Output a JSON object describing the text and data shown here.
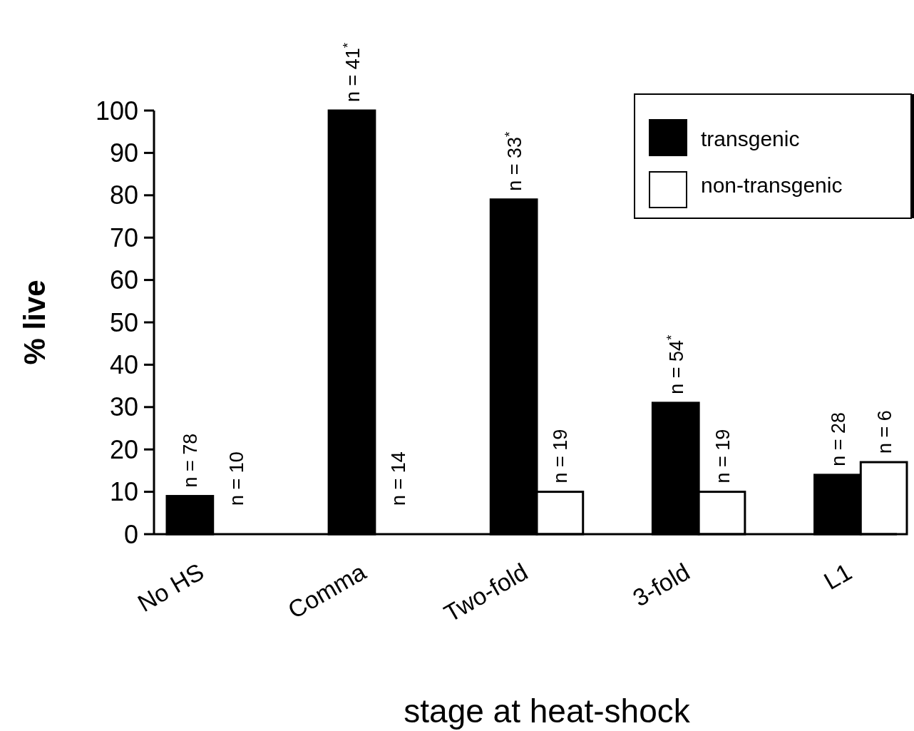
{
  "chart_data": {
    "type": "bar",
    "xlabel": "stage at heat-shock",
    "ylabel": "% live",
    "categories": [
      "No HS",
      "Comma",
      "Two-fold",
      "3-fold",
      "L1"
    ],
    "series": [
      {
        "name": "transgenic",
        "color": "#000000",
        "values": [
          9,
          100,
          79,
          31,
          14
        ]
      },
      {
        "name": "non-transgenic",
        "color": "#ffffff",
        "values": [
          0,
          0,
          10,
          10,
          17
        ]
      }
    ],
    "annotations": [
      "n = 78",
      "n = 10",
      "n = 41$^{*}$",
      "n = 14",
      "n = 33$^{*}$",
      "n = 19",
      "n = 54$^{*}$",
      "n = 19",
      "n = 28",
      "n = 6"
    ],
    "ylim": [
      0,
      100
    ],
    "yticks": [
      0,
      10,
      20,
      30,
      40,
      50,
      60,
      70,
      80,
      90,
      100
    ],
    "grid": false,
    "legend": "top right"
  }
}
